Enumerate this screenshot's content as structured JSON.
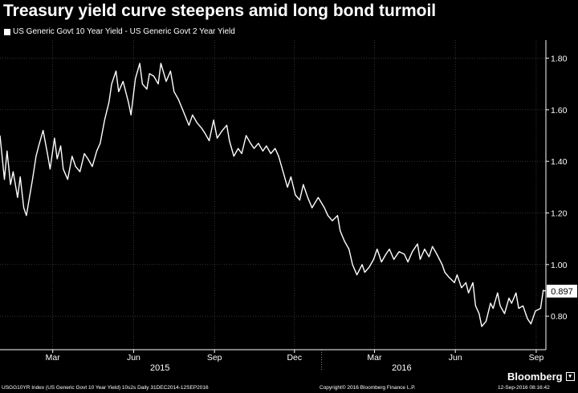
{
  "header": {
    "title": "Treasury yield curve steepens amid long bond turmoil"
  },
  "legend": {
    "entries": [
      "US Generic Govt 10 Year Yield - US Generic Govt 2 Year Yield"
    ]
  },
  "footer": {
    "left": "USGG10YR Index (US Generic Govt 10 Year Yield) 10s2s  Daily 31DEC2014-12SEP2016",
    "middle": "Copyright© 2016 Bloomberg Finance L.P.",
    "right": "12-Sep-2016 08:16:42",
    "brand": "Bloomberg"
  },
  "colors": {
    "background": "#000000",
    "line": "#ffffff",
    "marker": "#c0392b",
    "grid": "#555555"
  },
  "chart_data": {
    "type": "line",
    "title": "Treasury yield curve steepens amid long bond turmoil",
    "xlabel": "",
    "ylabel": "",
    "xlim": [
      "2014-12-31",
      "2016-09-12"
    ],
    "ylim": [
      0.67,
      1.87
    ],
    "y_ticks": [
      "1.80",
      "1.60",
      "1.40",
      "1.20",
      "1.00",
      "0.80"
    ],
    "x_ticks": [
      "Mar",
      "Jun",
      "Sep",
      "Dec",
      "Mar",
      "Jun",
      "Sep"
    ],
    "x_tick_dates": [
      "2015-03-01",
      "2015-06-01",
      "2015-09-01",
      "2015-12-01",
      "2016-03-01",
      "2016-06-01",
      "2016-09-01"
    ],
    "year_labels": [
      "2015",
      "2016"
    ],
    "year_label_dates": [
      "2015-07-01",
      "2016-04-01"
    ],
    "year_divider_date": "2016-01-01",
    "grid": true,
    "legend_position": "top-left",
    "last_value_label": "0.897",
    "series": [
      {
        "name": "US Generic Govt 10 Year Yield - US Generic Govt 2 Year Yield",
        "x": [
          "2014-12-31",
          "2015-01-05",
          "2015-01-08",
          "2015-01-12",
          "2015-01-15",
          "2015-01-20",
          "2015-01-23",
          "2015-01-27",
          "2015-01-30",
          "2015-02-03",
          "2015-02-06",
          "2015-02-10",
          "2015-02-13",
          "2015-02-18",
          "2015-02-23",
          "2015-02-26",
          "2015-03-03",
          "2015-03-06",
          "2015-03-10",
          "2015-03-13",
          "2015-03-18",
          "2015-03-23",
          "2015-03-27",
          "2015-04-01",
          "2015-04-06",
          "2015-04-10",
          "2015-04-15",
          "2015-04-20",
          "2015-04-24",
          "2015-04-29",
          "2015-05-04",
          "2015-05-07",
          "2015-05-12",
          "2015-05-15",
          "2015-05-20",
          "2015-05-26",
          "2015-05-29",
          "2015-06-03",
          "2015-06-08",
          "2015-06-11",
          "2015-06-16",
          "2015-06-19",
          "2015-06-24",
          "2015-06-29",
          "2015-07-02",
          "2015-07-08",
          "2015-07-13",
          "2015-07-17",
          "2015-07-22",
          "2015-07-28",
          "2015-08-03",
          "2015-08-07",
          "2015-08-12",
          "2015-08-17",
          "2015-08-21",
          "2015-08-26",
          "2015-08-31",
          "2015-09-04",
          "2015-09-10",
          "2015-09-15",
          "2015-09-18",
          "2015-09-23",
          "2015-09-28",
          "2015-10-02",
          "2015-10-07",
          "2015-10-12",
          "2015-10-16",
          "2015-10-21",
          "2015-10-26",
          "2015-10-30",
          "2015-11-04",
          "2015-11-09",
          "2015-11-13",
          "2015-11-18",
          "2015-11-23",
          "2015-11-27",
          "2015-12-02",
          "2015-12-07",
          "2015-12-11",
          "2015-12-16",
          "2015-12-21",
          "2015-12-28",
          "2016-01-04",
          "2016-01-08",
          "2016-01-13",
          "2016-01-19",
          "2016-01-22",
          "2016-01-27",
          "2016-02-01",
          "2016-02-05",
          "2016-02-10",
          "2016-02-16",
          "2016-02-19",
          "2016-02-24",
          "2016-02-29",
          "2016-03-04",
          "2016-03-09",
          "2016-03-14",
          "2016-03-18",
          "2016-03-23",
          "2016-03-29",
          "2016-04-04",
          "2016-04-08",
          "2016-04-13",
          "2016-04-19",
          "2016-04-22",
          "2016-04-27",
          "2016-05-02",
          "2016-05-06",
          "2016-05-11",
          "2016-05-17",
          "2016-05-20",
          "2016-05-25",
          "2016-05-31",
          "2016-06-03",
          "2016-06-08",
          "2016-06-13",
          "2016-06-16",
          "2016-06-21",
          "2016-06-24",
          "2016-06-28",
          "2016-07-01",
          "2016-07-06",
          "2016-07-11",
          "2016-07-14",
          "2016-07-19",
          "2016-07-22",
          "2016-07-27",
          "2016-08-01",
          "2016-08-04",
          "2016-08-09",
          "2016-08-12",
          "2016-08-17",
          "2016-08-22",
          "2016-08-26",
          "2016-08-31",
          "2016-09-06",
          "2016-09-09",
          "2016-09-12"
        ],
        "values": [
          1.5,
          1.33,
          1.44,
          1.31,
          1.36,
          1.26,
          1.34,
          1.22,
          1.19,
          1.27,
          1.33,
          1.42,
          1.46,
          1.52,
          1.43,
          1.37,
          1.49,
          1.41,
          1.46,
          1.37,
          1.33,
          1.42,
          1.38,
          1.36,
          1.43,
          1.41,
          1.38,
          1.44,
          1.47,
          1.56,
          1.63,
          1.7,
          1.75,
          1.67,
          1.71,
          1.63,
          1.58,
          1.72,
          1.78,
          1.7,
          1.68,
          1.74,
          1.73,
          1.7,
          1.78,
          1.71,
          1.75,
          1.67,
          1.64,
          1.59,
          1.54,
          1.58,
          1.55,
          1.53,
          1.51,
          1.48,
          1.56,
          1.49,
          1.52,
          1.54,
          1.48,
          1.42,
          1.45,
          1.43,
          1.5,
          1.47,
          1.45,
          1.47,
          1.44,
          1.46,
          1.43,
          1.45,
          1.42,
          1.36,
          1.3,
          1.34,
          1.27,
          1.25,
          1.31,
          1.26,
          1.22,
          1.26,
          1.22,
          1.19,
          1.17,
          1.19,
          1.13,
          1.09,
          1.06,
          1.0,
          0.96,
          1.0,
          0.97,
          0.99,
          1.02,
          1.06,
          1.01,
          1.04,
          1.06,
          1.02,
          1.05,
          1.04,
          1.01,
          1.05,
          1.08,
          1.02,
          1.06,
          1.03,
          1.07,
          1.04,
          1.0,
          0.97,
          0.95,
          0.93,
          0.96,
          0.91,
          0.93,
          0.89,
          0.93,
          0.84,
          0.81,
          0.76,
          0.78,
          0.85,
          0.83,
          0.89,
          0.84,
          0.81,
          0.87,
          0.85,
          0.89,
          0.83,
          0.84,
          0.79,
          0.77,
          0.82,
          0.83,
          0.9,
          0.897
        ]
      }
    ]
  }
}
